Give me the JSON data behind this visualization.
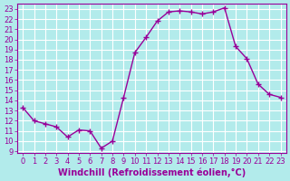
{
  "x": [
    0,
    1,
    2,
    3,
    4,
    5,
    6,
    7,
    8,
    9,
    10,
    11,
    12,
    13,
    14,
    15,
    16,
    17,
    18,
    19,
    20,
    21,
    22,
    23
  ],
  "y": [
    13.3,
    12.0,
    11.7,
    11.4,
    10.4,
    11.1,
    11.0,
    9.3,
    10.0,
    14.3,
    18.7,
    20.2,
    21.8,
    22.7,
    22.8,
    22.7,
    22.5,
    22.7,
    23.1,
    19.3,
    18.1,
    15.6,
    14.6,
    14.3
  ],
  "line_color": "#990099",
  "marker": "+",
  "markersize": 4,
  "linewidth": 1.0,
  "bg_color": "#b2ebeb",
  "grid_color": "#ffffff",
  "xlabel": "Windchill (Refroidissement éolien,°C)",
  "xlabel_fontsize": 7,
  "tick_fontsize": 6,
  "ylim": [
    8.8,
    23.5
  ],
  "xlim": [
    -0.5,
    23.5
  ],
  "yticks": [
    9,
    10,
    11,
    12,
    13,
    14,
    15,
    16,
    17,
    18,
    19,
    20,
    21,
    22,
    23
  ],
  "xticks": [
    0,
    1,
    2,
    3,
    4,
    5,
    6,
    7,
    8,
    9,
    10,
    11,
    12,
    13,
    14,
    15,
    16,
    17,
    18,
    19,
    20,
    21,
    22,
    23
  ]
}
